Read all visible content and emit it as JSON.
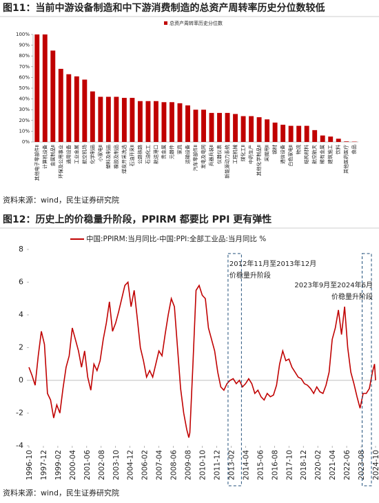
{
  "chart_data": [
    {
      "type": "bar",
      "title": "图11：当前中游设备制造和中下游消费制造的总资产周转率历史分位数较低",
      "categories": [
        "其他电子零部件Ⅱ",
        "计算机设备",
        "金属制品Ⅱ",
        "环保及公用事业",
        "通用设备",
        "工业金属",
        "航空机场",
        "化学制品",
        "小家电Ⅱ",
        "塑料及制品",
        "橡胶及制品",
        "煤炭开采洗选",
        "石油开采Ⅱ",
        "公路铁路",
        "石油化工",
        "航运港口",
        "贵金属",
        "元器件",
        "家具",
        "运输设备",
        "汽车零部件Ⅱ",
        "发电及电网",
        "兵器兵装Ⅱ",
        "仪器仪表",
        "新能源动力系统",
        "工程机械",
        "煤化工Ⅱ",
        "中药生产",
        "其他化学制品Ⅱ",
        "采掘用Ⅱ",
        "钢材",
        "通信设备",
        "白色家电Ⅱ",
        "物流",
        "结构材料",
        "航空航天",
        "稀有金属",
        "建筑施工",
        "饮料",
        "其他医药医疗",
        "食品"
      ],
      "series": [
        {
          "name": "总资产周转率历史分位数",
          "color": "#c00000",
          "values": [
            100,
            100,
            85,
            68,
            63,
            61,
            58,
            47,
            42,
            42,
            42,
            41,
            41,
            38,
            38,
            38,
            37,
            37,
            36,
            34,
            30,
            30,
            27,
            27,
            27,
            26,
            24,
            24,
            23,
            21,
            18,
            16,
            15,
            15,
            15,
            11,
            6,
            5,
            3,
            0.5,
            0.3
          ]
        }
      ],
      "ylim": [
        0,
        100
      ],
      "yticks": [
        {
          "value": 0,
          "label": "0%"
        },
        {
          "value": 10,
          "label": "10%"
        },
        {
          "value": 20,
          "label": "20%"
        },
        {
          "value": 30,
          "label": "30%"
        },
        {
          "value": 40,
          "label": "40%"
        },
        {
          "value": 50,
          "label": "50%"
        },
        {
          "value": 60,
          "label": "60%"
        },
        {
          "value": 70,
          "label": "70%"
        },
        {
          "value": 80,
          "label": "80%"
        },
        {
          "value": 90,
          "label": "90%"
        },
        {
          "value": 100,
          "label": "100%"
        }
      ],
      "source": "资料来源：wind，民生证券研究院"
    },
    {
      "type": "line",
      "title": "图12：历史上的价稳量升阶段，PPIRM 都要比 PPI 更有弹性",
      "x": [
        "1996-10",
        "1997-01",
        "1997-04",
        "1997-07",
        "1997-10",
        "1998-01",
        "1998-04",
        "1998-07",
        "1998-10",
        "1999-01",
        "1999-04",
        "1999-07",
        "1999-10",
        "2000-01",
        "2000-04",
        "2000-07",
        "2000-10",
        "2001-01",
        "2001-04",
        "2001-07",
        "2001-10",
        "2002-01",
        "2002-04",
        "2002-07",
        "2002-10",
        "2003-01",
        "2003-04",
        "2003-07",
        "2003-10",
        "2004-01",
        "2004-04",
        "2004-07",
        "2004-10",
        "2005-01",
        "2005-04",
        "2005-07",
        "2005-10",
        "2006-01",
        "2006-04",
        "2006-07",
        "2006-10",
        "2007-01",
        "2007-04",
        "2007-07",
        "2007-10",
        "2008-01",
        "2008-04",
        "2008-07",
        "2008-10",
        "2009-01",
        "2009-04",
        "2009-07",
        "2009-09",
        "2009-10",
        "2010-01",
        "2010-04",
        "2010-07",
        "2010-10",
        "2011-01",
        "2011-04",
        "2011-07",
        "2011-10",
        "2012-01",
        "2012-04",
        "2012-07",
        "2012-10",
        "2013-01",
        "2013-04",
        "2013-07",
        "2013-10",
        "2014-01",
        "2014-04",
        "2014-07",
        "2014-10",
        "2015-01",
        "2015-04",
        "2015-07",
        "2015-10",
        "2016-01",
        "2016-04",
        "2016-07",
        "2016-10",
        "2017-01",
        "2017-04",
        "2017-07",
        "2017-10",
        "2018-01",
        "2018-04",
        "2018-07",
        "2018-10",
        "2019-01",
        "2019-04",
        "2019-07",
        "2019-10",
        "2020-01",
        "2020-04",
        "2020-07",
        "2020-10",
        "2021-01",
        "2021-04",
        "2021-07",
        "2021-10",
        "2022-01",
        "2022-04",
        "2022-07",
        "2022-10",
        "2023-01",
        "2023-04",
        "2023-07",
        "2023-10",
        "2024-01",
        "2024-04",
        "2024-07",
        "2024-09",
        "2024-10"
      ],
      "series": [
        {
          "name": "中国:PPIRM:当月同比-中国:PPI:全部工业品:当月同比 %",
          "color": "#c00000",
          "values": [
            0.8,
            0.3,
            -0.3,
            1.5,
            3.0,
            2.2,
            -0.8,
            -1.2,
            -2.3,
            -1.5,
            -2.0,
            -0.5,
            0.8,
            1.5,
            3.2,
            2.5,
            1.8,
            0.8,
            1.8,
            0.2,
            -0.6,
            1.0,
            0.6,
            1.2,
            2.5,
            3.5,
            4.8,
            3.0,
            3.5,
            4.2,
            5.0,
            5.8,
            6.0,
            4.5,
            5.5,
            3.8,
            2.0,
            1.2,
            0.2,
            0.6,
            0.2,
            1.0,
            1.8,
            1.5,
            2.8,
            4.0,
            5.0,
            4.5,
            2.0,
            -0.5,
            -2.0,
            -3.0,
            -3.5,
            -3.2,
            1.0,
            5.5,
            5.8,
            5.2,
            5.0,
            3.2,
            2.5,
            1.8,
            0.5,
            -0.4,
            -0.6,
            -0.2,
            0.0,
            0.1,
            -0.2,
            0.0,
            -0.4,
            -0.2,
            0.1,
            -0.2,
            -0.8,
            -0.6,
            -1.0,
            -1.2,
            -0.8,
            -1.0,
            -0.9,
            -0.3,
            1.0,
            1.8,
            1.2,
            1.3,
            0.8,
            0.5,
            0.2,
            0.1,
            -0.2,
            -0.3,
            -0.5,
            -0.8,
            -0.4,
            -0.7,
            -0.8,
            -0.3,
            0.5,
            2.5,
            3.2,
            4.3,
            2.8,
            4.5,
            2.0,
            0.5,
            -0.2,
            -1.0,
            -1.7,
            -0.8,
            -0.8,
            -0.5,
            0.5,
            1.0,
            0.0
          ]
        }
      ],
      "xlim": [
        "1996-10",
        "2024-10"
      ],
      "xticks": [
        "1996-10",
        "1997-12",
        "1999-02",
        "2000-04",
        "2001-06",
        "2002-08",
        "2003-10",
        "2004-12",
        "2006-02",
        "2007-04",
        "2008-06",
        "2009-08",
        "2010-10",
        "2011-12",
        "2013-02",
        "2014-04",
        "2015-06",
        "2016-08",
        "2017-10",
        "2018-12",
        "2020-02",
        "2021-04",
        "2022-06",
        "2023-08",
        "2024-10"
      ],
      "ylim": [
        -4,
        8
      ],
      "yticks": [
        -4,
        -2,
        0,
        2,
        4,
        6,
        8
      ],
      "annotations": [
        {
          "lines": [
            "2012年11月至2013年12月",
            "价稳量升阶段"
          ],
          "start": "2012-11",
          "end": "2013-12"
        },
        {
          "lines": [
            "2023年9月至2024年6月",
            "价稳量升阶段"
          ],
          "start": "2023-09",
          "end": "2024-06"
        }
      ],
      "source": "资料来源：wind，民生证券研究院"
    }
  ]
}
